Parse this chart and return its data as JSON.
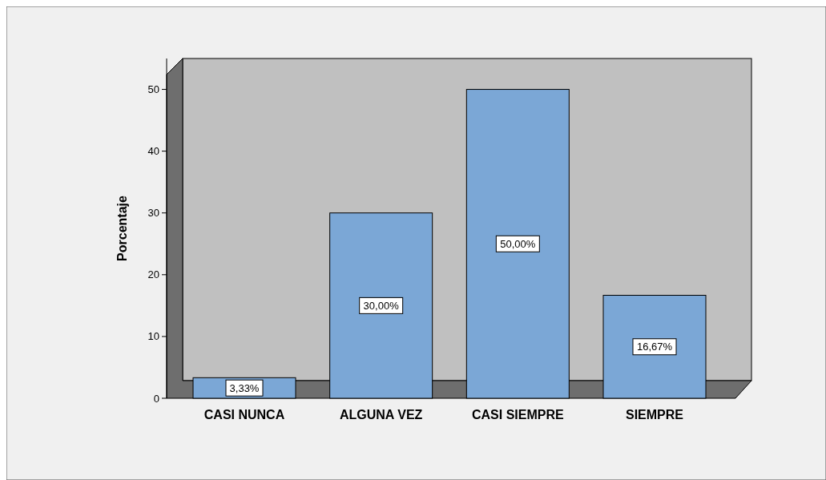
{
  "chart_data": {
    "type": "bar",
    "ylabel": "Porcentaje",
    "categories": [
      "CASI NUNCA",
      "ALGUNA VEZ",
      "CASI SIEMPRE",
      "SIEMPRE"
    ],
    "values": [
      3.33,
      30.0,
      50.0,
      16.67
    ],
    "value_labels": [
      "3,33%",
      "30,00%",
      "50,00%",
      "16,67%"
    ],
    "color": "#7ba7d6",
    "ylim": [
      0,
      55
    ],
    "yticks": [
      0,
      10,
      20,
      30,
      40,
      50
    ]
  }
}
